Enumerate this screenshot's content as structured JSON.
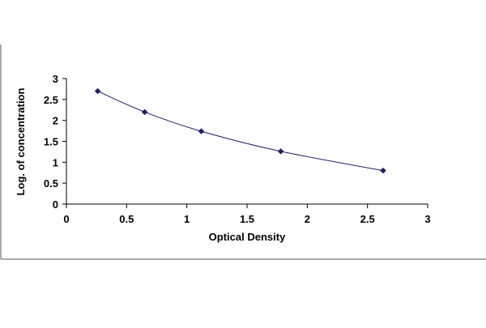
{
  "chart_data": {
    "type": "line",
    "title": "",
    "xlabel": "Optical Density",
    "ylabel": "Log. of concentration",
    "xlim": [
      0,
      3
    ],
    "ylim": [
      0,
      3
    ],
    "xticks": [
      0,
      0.5,
      1,
      1.5,
      2,
      2.5,
      3
    ],
    "xtick_labels": [
      "0",
      "0.5",
      "1",
      "1.5",
      "2",
      "2.5",
      "3"
    ],
    "yticks": [
      0,
      0.5,
      1,
      1.5,
      2,
      2.5,
      3
    ],
    "ytick_labels": [
      "0",
      "0.5",
      "1",
      "1.5",
      "2",
      "2.5",
      "3"
    ],
    "grid": false,
    "legend": "none",
    "series": [
      {
        "marker": "diamond",
        "color": "#1f1f6e",
        "x": [
          0.26,
          0.65,
          1.12,
          1.78,
          2.63
        ],
        "y": [
          2.7,
          2.2,
          1.74,
          1.26,
          0.8
        ]
      }
    ]
  }
}
